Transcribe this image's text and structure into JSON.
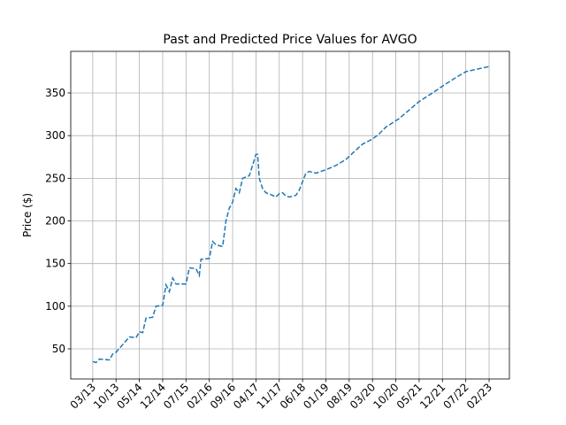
{
  "chart_data": {
    "type": "line",
    "title": "Past and Predicted Price Values for AVGO",
    "y_label": "Price ($)",
    "x": [
      0,
      1,
      2,
      5,
      6,
      7,
      9,
      11,
      13,
      14,
      15,
      16,
      18,
      19,
      21,
      22,
      23,
      24,
      25,
      28,
      29,
      31,
      32,
      32.5,
      35,
      36,
      37,
      39,
      40,
      41,
      42,
      43,
      44,
      45,
      47,
      48,
      49,
      49.5,
      50,
      51,
      52,
      54,
      55,
      56,
      57,
      58,
      59,
      61,
      62,
      63,
      64,
      65,
      67,
      70,
      73,
      76,
      79,
      81,
      84,
      86,
      88,
      92,
      95,
      98,
      102,
      105,
      109,
      112,
      119
    ],
    "series": [
      {
        "name": "Price",
        "color": "#1f77b4",
        "values": [
          35,
          34,
          38,
          37,
          44,
          46,
          55,
          64,
          63,
          70,
          69,
          86,
          87,
          100,
          101,
          125,
          117,
          133,
          126,
          126,
          145,
          144,
          136,
          155,
          156,
          176,
          172,
          170,
          200,
          215,
          222,
          238,
          233,
          250,
          253,
          265,
          278,
          278,
          250,
          238,
          233,
          230,
          228,
          232,
          233,
          229,
          228,
          230,
          236,
          246,
          256,
          258,
          256,
          260,
          265,
          272,
          283,
          290,
          296,
          302,
          310,
          320,
          330,
          340,
          350,
          358,
          368,
          375,
          381
        ]
      }
    ],
    "xlim": [
      -6.6,
      125.1
    ],
    "xticks": [
      {
        "value": 0,
        "label": "03/13"
      },
      {
        "value": 7,
        "label": "10/13"
      },
      {
        "value": 14,
        "label": "05/14"
      },
      {
        "value": 21,
        "label": "12/14"
      },
      {
        "value": 28,
        "label": "07/15"
      },
      {
        "value": 35,
        "label": "02/16"
      },
      {
        "value": 42,
        "label": "09/16"
      },
      {
        "value": 49,
        "label": "04/17"
      },
      {
        "value": 56,
        "label": "11/17"
      },
      {
        "value": 63,
        "label": "06/18"
      },
      {
        "value": 70,
        "label": "01/19"
      },
      {
        "value": 77,
        "label": "08/19"
      },
      {
        "value": 84,
        "label": "03/20"
      },
      {
        "value": 91,
        "label": "10/20"
      },
      {
        "value": 98,
        "label": "05/21"
      },
      {
        "value": 105,
        "label": "12/21"
      },
      {
        "value": 112,
        "label": "07/22"
      },
      {
        "value": 119,
        "label": "02/23"
      }
    ],
    "ylim": [
      14.7,
      398.8
    ],
    "yticks": [
      50,
      100,
      150,
      200,
      250,
      300,
      350
    ],
    "grid": true
  }
}
